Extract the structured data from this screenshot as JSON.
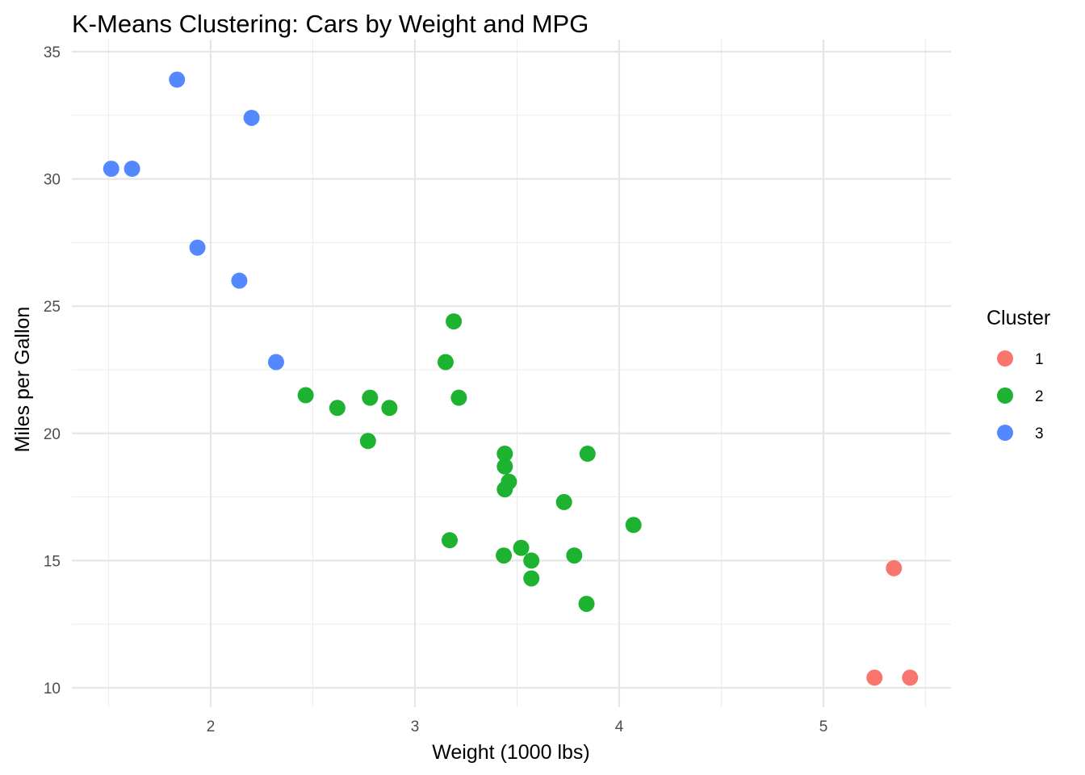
{
  "chart_data": {
    "type": "scatter",
    "title": "K-Means Clustering: Cars by Weight and MPG",
    "xlabel": "Weight (1000 lbs)",
    "ylabel": "Miles per Gallon",
    "xlim": [
      1.3,
      5.6
    ],
    "ylim": [
      9.0,
      35.3
    ],
    "xticks": [
      2,
      3,
      4,
      5
    ],
    "xtick_labels": [
      "2",
      "3",
      "4",
      "5"
    ],
    "yticks": [
      10,
      15,
      20,
      25,
      30,
      35
    ],
    "ytick_labels": [
      "10",
      "15",
      "20",
      "25",
      "30",
      "35"
    ],
    "x_minor": [
      1.5,
      2.5,
      3.5,
      4.5,
      5.5
    ],
    "y_minor": [
      12.5,
      17.5,
      22.5,
      27.5,
      32.5
    ],
    "grid": true,
    "legend": {
      "title": "Cluster",
      "placement": "right",
      "entries": [
        {
          "label": "1",
          "color": "#F8766D"
        },
        {
          "label": "2",
          "color": "#1DB22F"
        },
        {
          "label": "3",
          "color": "#5388FF"
        }
      ]
    },
    "series": [
      {
        "name": "1",
        "color": "#F8766D",
        "points": [
          [
            5.25,
            10.4
          ],
          [
            5.424,
            10.4
          ],
          [
            5.345,
            14.7
          ]
        ]
      },
      {
        "name": "2",
        "color": "#1DB22F",
        "points": [
          [
            2.62,
            21.0
          ],
          [
            2.875,
            21.0
          ],
          [
            3.215,
            21.4
          ],
          [
            3.44,
            18.7
          ],
          [
            3.46,
            18.1
          ],
          [
            3.57,
            14.3
          ],
          [
            3.19,
            24.4
          ],
          [
            3.15,
            22.8
          ],
          [
            3.44,
            19.2
          ],
          [
            3.44,
            17.8
          ],
          [
            4.07,
            16.4
          ],
          [
            3.73,
            17.3
          ],
          [
            3.78,
            15.2
          ],
          [
            2.465,
            21.5
          ],
          [
            3.52,
            15.5
          ],
          [
            3.435,
            15.2
          ],
          [
            3.84,
            13.3
          ],
          [
            3.845,
            19.2
          ],
          [
            3.17,
            15.8
          ],
          [
            2.77,
            19.7
          ],
          [
            2.78,
            21.4
          ],
          [
            3.57,
            15.0
          ]
        ]
      },
      {
        "name": "3",
        "color": "#5388FF",
        "points": [
          [
            2.32,
            22.8
          ],
          [
            2.2,
            32.4
          ],
          [
            1.615,
            30.4
          ],
          [
            1.835,
            33.9
          ],
          [
            1.935,
            27.3
          ],
          [
            2.14,
            26.0
          ],
          [
            1.513,
            30.4
          ]
        ]
      }
    ]
  }
}
